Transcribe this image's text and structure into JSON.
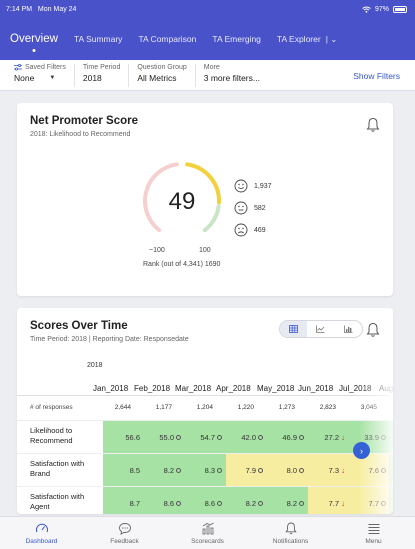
{
  "status": {
    "time": "7:14 PM",
    "date": "Mon May 24",
    "battery": "97%"
  },
  "nav": {
    "tabs": [
      {
        "label": "Overview"
      },
      {
        "label": "TA Summary"
      },
      {
        "label": "TA Comparison"
      },
      {
        "label": "TA Emerging"
      },
      {
        "label": "TA Explorer"
      }
    ]
  },
  "filters": {
    "groups": [
      {
        "label": "Saved Filters",
        "value": "None"
      },
      {
        "label": "Time Period",
        "value": "2018"
      },
      {
        "label": "Question Group",
        "value": "All Metrics"
      },
      {
        "label": "More",
        "value": "3 more filters..."
      }
    ],
    "show_filters": "Show Filters"
  },
  "nps": {
    "title": "Net Promoter Score",
    "subtitle": "2018: Likelihood to Recommend",
    "score": "49",
    "range_min": "−100",
    "range_max": "100",
    "rank": "Rank (out of 4,341) 1690",
    "promoters": "1,937",
    "passives": "582",
    "detractors": "469",
    "colors": {
      "promoter": "#f2d13c",
      "passive": "#c8e6c4",
      "detractor": "#f6cfcf"
    }
  },
  "sot": {
    "title": "Scores Over Time",
    "subtitle": "Time Period: 2018 | Reporting Date: Responsedate",
    "year": "2018",
    "responses_label": "# of responses",
    "columns": [
      "Jan_2018",
      "Feb_2018",
      "Mar_2018",
      "Apr_2018",
      "May_2018",
      "Jun_2018",
      "Jul_2018",
      "Aug"
    ],
    "responses": [
      "2,644",
      "1,177",
      "1,204",
      "1,220",
      "1,273",
      "2,823",
      "3,045"
    ],
    "rows": [
      {
        "label": "Likelihood to Recommend",
        "cells": [
          {
            "v": "56.6",
            "c": "g",
            "m": ""
          },
          {
            "v": "55.0",
            "c": "g",
            "m": "circle"
          },
          {
            "v": "54.7",
            "c": "g",
            "m": "circle"
          },
          {
            "v": "42.0",
            "c": "g",
            "m": "circle"
          },
          {
            "v": "46.9",
            "c": "g",
            "m": "circle"
          },
          {
            "v": "27.2",
            "c": "g",
            "m": "down"
          },
          {
            "v": "33.9",
            "c": "g",
            "m": "circle"
          }
        ]
      },
      {
        "label": "Satisfaction with Brand",
        "cells": [
          {
            "v": "8.5",
            "c": "g",
            "m": ""
          },
          {
            "v": "8.2",
            "c": "g",
            "m": "circle"
          },
          {
            "v": "8.3",
            "c": "g",
            "m": "circle"
          },
          {
            "v": "7.9",
            "c": "y",
            "m": "circle"
          },
          {
            "v": "8.0",
            "c": "y",
            "m": "circle"
          },
          {
            "v": "7.3",
            "c": "y",
            "m": "down"
          },
          {
            "v": "7.6",
            "c": "y",
            "m": "circle"
          }
        ]
      },
      {
        "label": "Satisfaction with Agent",
        "cells": [
          {
            "v": "8.7",
            "c": "g",
            "m": ""
          },
          {
            "v": "8.6",
            "c": "g",
            "m": "circle"
          },
          {
            "v": "8.6",
            "c": "g",
            "m": "circle"
          },
          {
            "v": "8.2",
            "c": "g",
            "m": "circle"
          },
          {
            "v": "8.2",
            "c": "g",
            "m": "circle"
          },
          {
            "v": "7.7",
            "c": "y",
            "m": "down"
          },
          {
            "v": "7.7",
            "c": "y",
            "m": "circle"
          }
        ]
      }
    ]
  },
  "tabbar": {
    "items": [
      {
        "label": "Dashboard",
        "icon": "gauge-icon"
      },
      {
        "label": "Feedback",
        "icon": "chat-icon"
      },
      {
        "label": "Scorecards",
        "icon": "chart-icon"
      },
      {
        "label": "Notifications",
        "icon": "bell-icon"
      },
      {
        "label": "Menu",
        "icon": "menu-icon"
      }
    ]
  }
}
